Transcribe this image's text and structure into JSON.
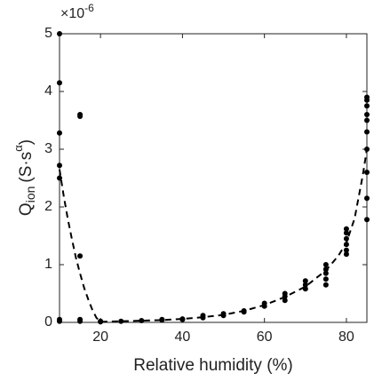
{
  "chart_data": {
    "type": "scatter",
    "x_label": "Relative humidity (%)",
    "y_label": {
      "main": "Q",
      "sub": "ion",
      "unit": "(S·s",
      "sup": "α",
      "close": ")"
    },
    "multiplier": {
      "base": "×10",
      "exponent": "-6"
    },
    "xlim": [
      10,
      85
    ],
    "xticks": [
      20,
      40,
      60,
      80
    ],
    "ylim": [
      0,
      5
    ],
    "yticks": [
      0,
      1,
      2,
      3,
      4,
      5
    ],
    "series": [
      {
        "type": "scatter",
        "color": "#000000",
        "x": [
          10,
          10,
          10,
          10,
          10,
          10,
          10,
          15,
          15,
          15,
          15,
          15,
          20,
          20,
          25,
          30,
          35,
          35,
          40,
          40,
          45,
          45,
          50,
          50,
          55,
          55,
          60,
          60,
          65,
          65,
          65,
          70,
          70,
          70,
          75,
          75,
          75,
          75,
          75,
          80,
          80,
          80,
          80,
          80,
          80,
          85,
          85,
          85,
          85,
          85,
          85,
          85,
          85,
          85,
          85
        ],
        "values": [
          5.0,
          4.15,
          3.28,
          2.72,
          2.5,
          0.05,
          0.02,
          3.6,
          3.57,
          1.15,
          0.05,
          0.02,
          0.02,
          0.01,
          0.02,
          0.03,
          0.05,
          0.04,
          0.06,
          0.05,
          0.12,
          0.08,
          0.15,
          0.12,
          0.2,
          0.18,
          0.33,
          0.28,
          0.5,
          0.45,
          0.38,
          0.72,
          0.65,
          0.58,
          1.0,
          0.92,
          0.85,
          0.75,
          0.65,
          1.62,
          1.55,
          1.45,
          1.35,
          1.25,
          1.18,
          3.9,
          3.85,
          3.75,
          3.6,
          3.5,
          3.3,
          3.0,
          2.6,
          2.15,
          1.78
        ]
      },
      {
        "type": "line",
        "style": "dashed",
        "color": "#000000",
        "x": [
          10,
          11,
          12,
          13,
          14,
          15,
          16,
          17,
          18,
          19,
          20,
          25,
          30,
          35,
          40,
          45,
          50,
          55,
          60,
          65,
          70,
          75,
          78,
          80,
          82,
          84,
          85
        ],
        "values": [
          2.65,
          2.2,
          1.8,
          1.45,
          1.12,
          0.85,
          0.6,
          0.4,
          0.22,
          0.08,
          0.01,
          0.02,
          0.03,
          0.04,
          0.06,
          0.09,
          0.13,
          0.2,
          0.3,
          0.44,
          0.62,
          0.9,
          1.15,
          1.38,
          1.8,
          2.55,
          3.0
        ]
      }
    ]
  }
}
